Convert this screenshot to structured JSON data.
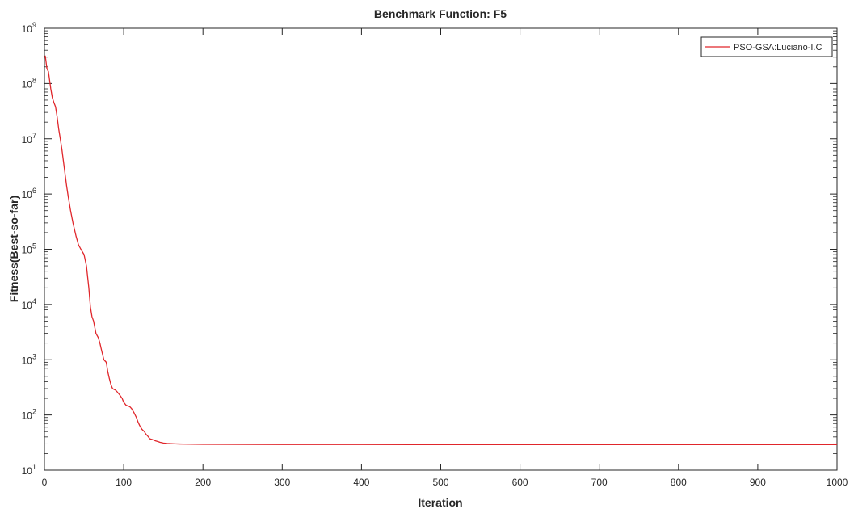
{
  "chart_data": {
    "type": "line",
    "title": "Benchmark Function: F5",
    "xlabel": "Iteration",
    "ylabel": "Fitness(Best-so-far)",
    "yscale": "log",
    "xlim": [
      0,
      1000
    ],
    "ylim": [
      10,
      1000000000
    ],
    "grid": false,
    "legend_position": "top-right",
    "x_ticks": [
      "0",
      "100",
      "200",
      "300",
      "400",
      "500",
      "600",
      "700",
      "800",
      "900",
      "1000"
    ],
    "y_ticks": [
      {
        "base": "10",
        "exp": "1"
      },
      {
        "base": "10",
        "exp": "2"
      },
      {
        "base": "10",
        "exp": "3"
      },
      {
        "base": "10",
        "exp": "4"
      },
      {
        "base": "10",
        "exp": "5"
      },
      {
        "base": "10",
        "exp": "6"
      },
      {
        "base": "10",
        "exp": "7"
      },
      {
        "base": "10",
        "exp": "8"
      },
      {
        "base": "10",
        "exp": "9"
      }
    ],
    "series": [
      {
        "name": "PSO-GSA:Luciano-I.C",
        "color": "#e0262b",
        "x": [
          1,
          2,
          3,
          4,
          5,
          6,
          8,
          10,
          12,
          14,
          16,
          18,
          20,
          22,
          25,
          28,
          30,
          33,
          36,
          40,
          43,
          46,
          50,
          53,
          56,
          58,
          60,
          62,
          65,
          68,
          70,
          72,
          75,
          78,
          80,
          82,
          84,
          86,
          88,
          90,
          92,
          95,
          98,
          100,
          103,
          106,
          108,
          110,
          113,
          116,
          118,
          120,
          123,
          126,
          128,
          130,
          133,
          136,
          138,
          140,
          143,
          146,
          148,
          150,
          155,
          160,
          165,
          170,
          180,
          190,
          200,
          250,
          300,
          400,
          500,
          600,
          700,
          800,
          900,
          1000
        ],
        "y": [
          320000000,
          250000000,
          190000000,
          175000000,
          165000000,
          130000000,
          80000000,
          55000000,
          45000000,
          38000000,
          25000000,
          15000000,
          10000000,
          6500000,
          3000000,
          1400000,
          900000,
          500000,
          300000,
          170000,
          120000,
          100000,
          80000,
          50000,
          20000,
          9000,
          6000,
          5000,
          3000,
          2500,
          2000,
          1500,
          1000,
          900,
          600,
          450,
          350,
          300,
          290,
          280,
          260,
          230,
          200,
          170,
          150,
          145,
          140,
          130,
          110,
          90,
          75,
          65,
          55,
          50,
          45,
          42,
          37,
          36,
          35,
          34,
          33,
          32,
          31.5,
          31,
          30.5,
          30.2,
          30,
          29.8,
          29.6,
          29.5,
          29.4,
          29.3,
          29.2,
          29.1,
          29.0,
          29.0,
          29.0,
          29.0,
          29.0,
          29.0
        ]
      }
    ]
  }
}
